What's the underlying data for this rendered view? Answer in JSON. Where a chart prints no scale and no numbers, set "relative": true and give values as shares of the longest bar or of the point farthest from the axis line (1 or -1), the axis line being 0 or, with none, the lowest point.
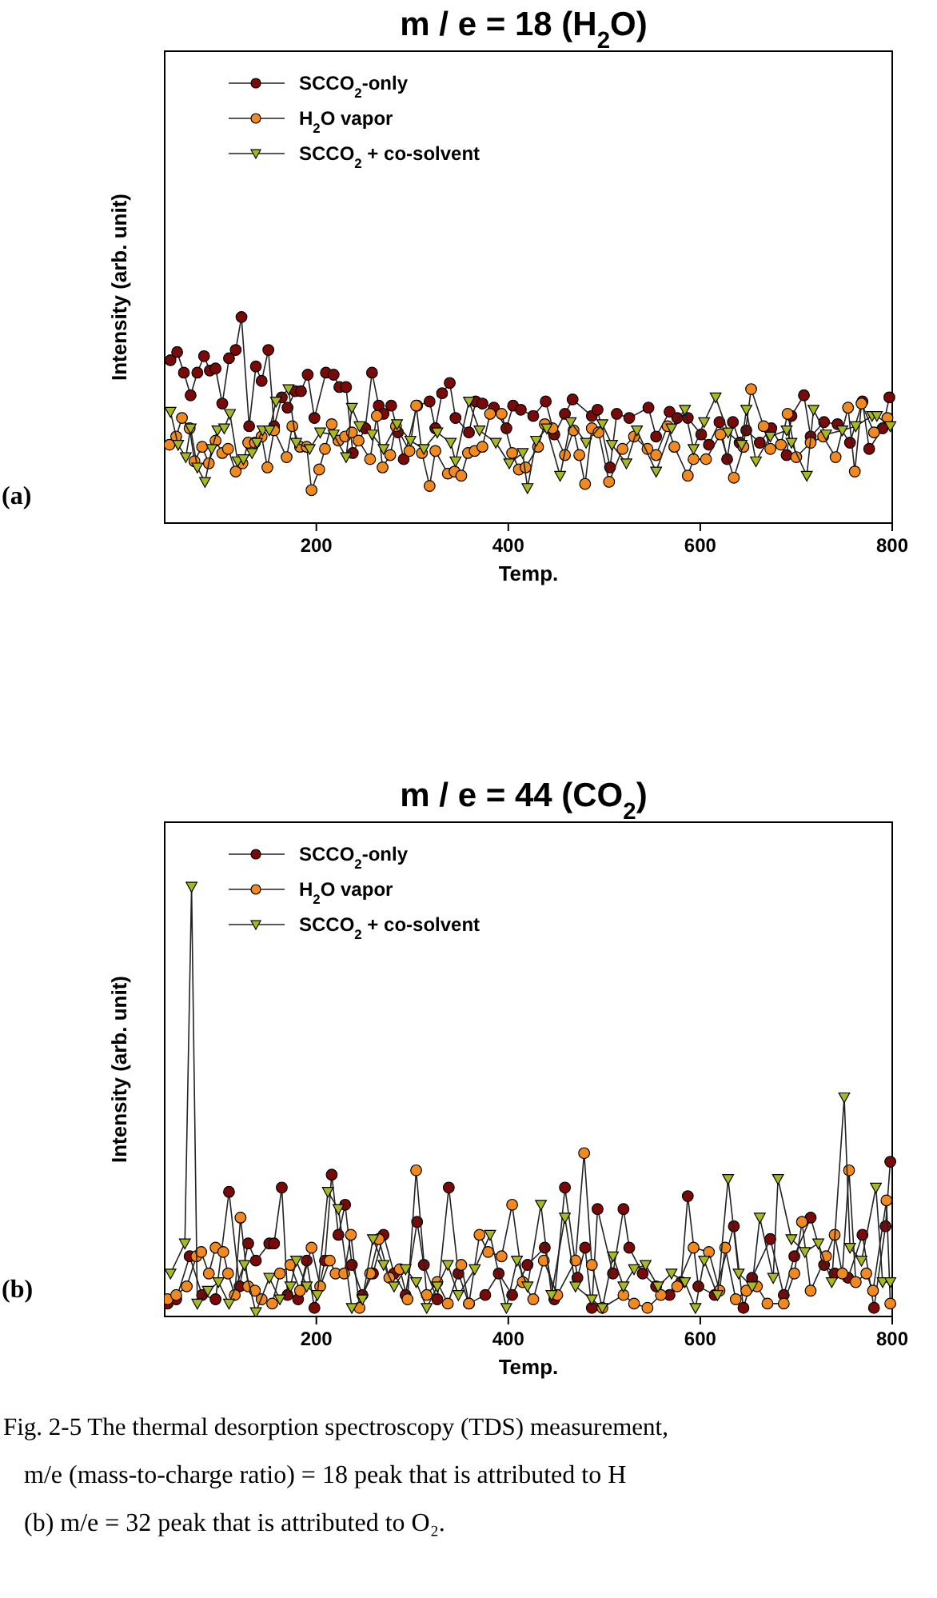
{
  "chart_data": [
    {
      "type": "line",
      "title": "m / e  =  18  (H$_{2}$O)",
      "xlabel": "Temp.",
      "ylabel": "Intensity (arb. unit)",
      "relative": true,
      "xlim": [
        42,
        800
      ],
      "xticks": [
        200,
        400,
        600,
        800
      ],
      "legend": "top left",
      "annotations": [
        "(a)"
      ],
      "series": [
        {
          "name": "SCCO$_{2}$-only",
          "color": "#7a0a0a",
          "marker": "circle",
          "x": [
            48,
            55,
            62,
            69,
            76,
            83,
            89,
            95,
            102,
            109,
            116,
            122,
            130,
            137,
            143,
            150,
            156,
            164,
            170,
            178,
            184,
            191,
            198,
            210,
            218,
            224,
            231,
            238,
            251,
            258,
            265,
            270,
            278,
            285,
            291,
            305,
            318,
            324,
            331,
            339,
            345,
            359,
            366,
            373,
            385,
            398,
            405,
            413,
            426,
            439,
            448,
            459,
            467,
            487,
            493,
            506,
            513,
            526,
            546,
            554,
            568,
            576,
            587,
            601,
            609,
            620,
            628,
            634,
            641,
            648,
            662,
            674,
            690,
            695,
            708,
            715,
            729,
            743,
            756,
            769,
            776,
            790,
            797
          ],
          "values": [
            0.79,
            0.83,
            0.73,
            0.62,
            0.73,
            0.81,
            0.74,
            0.75,
            0.58,
            0.8,
            0.84,
            1.0,
            0.47,
            0.76,
            0.69,
            0.84,
            0.47,
            0.61,
            0.56,
            0.64,
            0.64,
            0.72,
            0.51,
            0.73,
            0.72,
            0.66,
            0.66,
            0.34,
            0.46,
            0.73,
            0.57,
            0.53,
            0.57,
            0.44,
            0.31,
            0.57,
            0.59,
            0.46,
            0.63,
            0.68,
            0.51,
            0.44,
            0.59,
            0.58,
            0.56,
            0.46,
            0.57,
            0.55,
            0.52,
            0.59,
            0.43,
            0.53,
            0.6,
            0.52,
            0.55,
            0.27,
            0.53,
            0.51,
            0.56,
            0.42,
            0.54,
            0.51,
            0.51,
            0.43,
            0.38,
            0.49,
            0.31,
            0.49,
            0.39,
            0.45,
            0.39,
            0.46,
            0.33,
            0.52,
            0.62,
            0.42,
            0.49,
            0.48,
            0.39,
            0.59,
            0.36,
            0.46,
            0.61
          ]
        },
        {
          "name": "H$_{2}$O vapor",
          "color": "#f08a20",
          "marker": "circle",
          "x": [
            47,
            54,
            60,
            68,
            73,
            81,
            88,
            95,
            102,
            108,
            116,
            123,
            129,
            136,
            143,
            149,
            156,
            169,
            175,
            183,
            190,
            195,
            203,
            209,
            216,
            223,
            230,
            237,
            244,
            256,
            263,
            269,
            277,
            283,
            297,
            304,
            310,
            318,
            324,
            337,
            344,
            351,
            358,
            365,
            373,
            381,
            393,
            404,
            411,
            418,
            431,
            438,
            446,
            459,
            468,
            474,
            480,
            487,
            494,
            505,
            519,
            531,
            545,
            554,
            566,
            573,
            587,
            593,
            606,
            621,
            635,
            645,
            653,
            666,
            673,
            684,
            691,
            700,
            715,
            728,
            741,
            754,
            761,
            768,
            781,
            795
          ],
          "values": [
            0.38,
            0.42,
            0.51,
            0.46,
            0.3,
            0.37,
            0.29,
            0.4,
            0.34,
            0.36,
            0.25,
            0.29,
            0.39,
            0.39,
            0.42,
            0.27,
            0.45,
            0.32,
            0.47,
            0.37,
            0.37,
            0.16,
            0.26,
            0.36,
            0.48,
            0.4,
            0.42,
            0.44,
            0.4,
            0.31,
            0.52,
            0.27,
            0.33,
            0.47,
            0.35,
            0.57,
            0.34,
            0.18,
            0.35,
            0.24,
            0.25,
            0.23,
            0.34,
            0.35,
            0.37,
            0.53,
            0.53,
            0.34,
            0.26,
            0.27,
            0.37,
            0.48,
            0.46,
            0.33,
            0.45,
            0.33,
            0.19,
            0.46,
            0.44,
            0.2,
            0.36,
            0.42,
            0.36,
            0.33,
            0.47,
            0.37,
            0.23,
            0.31,
            0.31,
            0.43,
            0.22,
            0.37,
            0.65,
            0.47,
            0.36,
            0.38,
            0.53,
            0.32,
            0.39,
            0.42,
            0.32,
            0.56,
            0.25,
            0.58,
            0.44,
            0.51
          ]
        },
        {
          "name": "SCCO$_{2}$ + co-solvent",
          "color": "#a8b820",
          "marker": "triangle",
          "x": [
            48,
            56,
            64,
            69,
            76,
            84,
            91,
            97,
            104,
            110,
            118,
            124,
            133,
            138,
            144,
            151,
            158,
            171,
            179,
            193,
            204,
            218,
            231,
            237,
            245,
            258,
            270,
            284,
            298,
            312,
            326,
            340,
            345,
            359,
            370,
            387,
            401,
            415,
            420,
            429,
            440,
            454,
            465,
            481,
            498,
            508,
            523,
            534,
            554,
            570,
            584,
            593,
            604,
            616,
            629,
            643,
            648,
            658,
            673,
            690,
            695,
            711,
            718,
            731,
            748,
            762,
            779,
            784,
            798
          ],
          "values": [
            0.54,
            0.38,
            0.32,
            0.46,
            0.27,
            0.2,
            0.36,
            0.45,
            0.46,
            0.53,
            0.3,
            0.31,
            0.34,
            0.39,
            0.45,
            0.45,
            0.59,
            0.65,
            0.39,
            0.36,
            0.44,
            0.43,
            0.32,
            0.56,
            0.47,
            0.43,
            0.36,
            0.48,
            0.4,
            0.36,
            0.44,
            0.39,
            0.3,
            0.59,
            0.45,
            0.39,
            0.29,
            0.34,
            0.17,
            0.4,
            0.46,
            0.23,
            0.49,
            0.39,
            0.48,
            0.38,
            0.29,
            0.45,
            0.25,
            0.46,
            0.55,
            0.36,
            0.49,
            0.61,
            0.44,
            0.38,
            0.55,
            0.3,
            0.42,
            0.45,
            0.39,
            0.23,
            0.55,
            0.43,
            0.45,
            0.47,
            0.52,
            0.52,
            0.47
          ]
        }
      ]
    },
    {
      "type": "line",
      "title": "m / e  =  44  (CO$_{2}$)",
      "xlabel": "Temp.",
      "ylabel": "Intensity (arb. unit)",
      "relative": true,
      "xlim": [
        42,
        800
      ],
      "xticks": [
        200,
        400,
        600,
        800
      ],
      "legend": "top left",
      "annotations": [
        "(b)",
        "Fig. 2-5    The thermal desorption spectroscopy (TDS) measurement,",
        "m/e (mass-to-charge ratio) = 18 peak that is attributed to H",
        "(b) m/e = 32 peak that is attributed to O₂."
      ],
      "series": [
        {
          "name": "SCCO$_{2}$-only",
          "color": "#7a0a0a",
          "marker": "circle",
          "x": [
            45,
            54,
            68,
            81,
            95,
            109,
            120,
            129,
            137,
            151,
            156,
            164,
            170,
            181,
            190,
            198,
            209,
            216,
            223,
            230,
            237,
            248,
            259,
            270,
            281,
            293,
            305,
            312,
            326,
            338,
            348,
            359,
            376,
            390,
            404,
            420,
            438,
            448,
            459,
            472,
            480,
            487,
            493,
            509,
            520,
            526,
            540,
            554,
            568,
            580,
            587,
            598,
            615,
            635,
            645,
            654,
            673,
            687,
            698,
            715,
            729,
            740,
            754,
            769,
            781,
            793,
            798
          ],
          "values": [
            0.03,
            0.04,
            0.14,
            0.05,
            0.04,
            0.29,
            0.07,
            0.17,
            0.13,
            0.17,
            0.17,
            0.3,
            0.05,
            0.04,
            0.13,
            0.02,
            0.13,
            0.33,
            0.19,
            0.26,
            0.12,
            0.05,
            0.1,
            0.19,
            0.1,
            0.05,
            0.22,
            0.12,
            0.04,
            0.3,
            0.1,
            0.03,
            0.05,
            0.1,
            0.05,
            0.12,
            0.16,
            0.04,
            0.3,
            0.09,
            0.16,
            0.02,
            0.25,
            0.1,
            0.25,
            0.16,
            0.1,
            0.07,
            0.05,
            0.08,
            0.28,
            0.07,
            0.05,
            0.21,
            0.02,
            0.09,
            0.18,
            0.05,
            0.14,
            0.23,
            0.12,
            0.1,
            0.09,
            0.19,
            0.02,
            0.21,
            0.36
          ]
        },
        {
          "name": "H$_{2}$O vapor",
          "color": "#f08a20",
          "marker": "circle",
          "x": [
            45,
            54,
            65,
            75,
            80,
            88,
            95,
            103,
            108,
            115,
            121,
            129,
            136,
            143,
            154,
            162,
            173,
            183,
            195,
            204,
            214,
            220,
            229,
            236,
            245,
            256,
            265,
            276,
            287,
            295,
            304,
            315,
            326,
            337,
            351,
            359,
            370,
            379,
            393,
            404,
            415,
            426,
            437,
            451,
            470,
            479,
            487,
            498,
            520,
            531,
            545,
            559,
            576,
            593,
            609,
            620,
            626,
            637,
            648,
            659,
            670,
            687,
            698,
            706,
            715,
            731,
            740,
            748,
            755,
            762,
            773,
            780,
            794,
            798
          ],
          "values": [
            0.04,
            0.05,
            0.07,
            0.14,
            0.15,
            0.1,
            0.16,
            0.15,
            0.1,
            0.05,
            0.23,
            0.07,
            0.06,
            0.04,
            0.03,
            0.1,
            0.12,
            0.06,
            0.16,
            0.07,
            0.13,
            0.1,
            0.1,
            0.19,
            0.02,
            0.1,
            0.18,
            0.09,
            0.11,
            0.04,
            0.34,
            0.05,
            0.08,
            0.03,
            0.12,
            0.03,
            0.19,
            0.15,
            0.14,
            0.26,
            0.08,
            0.04,
            0.13,
            0.05,
            0.13,
            0.38,
            0.12,
            0.02,
            0.05,
            0.03,
            0.02,
            0.05,
            0.07,
            0.16,
            0.15,
            0.06,
            0.16,
            0.04,
            0.06,
            0.07,
            0.03,
            0.03,
            0.1,
            0.22,
            0.06,
            0.14,
            0.19,
            0.1,
            0.34,
            0.08,
            0.1,
            0.06,
            0.27,
            0.03
          ]
        },
        {
          "name": "SCCO$_{2}$ + co-solvent",
          "color": "#a8b820",
          "marker": "triangle",
          "x": [
            48,
            63,
            70,
            76,
            87,
            98,
            109,
            125,
            137,
            151,
            162,
            173,
            179,
            190,
            201,
            212,
            223,
            237,
            248,
            259,
            270,
            281,
            293,
            304,
            315,
            326,
            337,
            348,
            365,
            381,
            398,
            409,
            420,
            434,
            445,
            459,
            470,
            487,
            498,
            509,
            520,
            531,
            543,
            556,
            570,
            584,
            595,
            604,
            618,
            629,
            640,
            654,
            662,
            676,
            681,
            695,
            709,
            723,
            737,
            750,
            756,
            768,
            783,
            790,
            798
          ],
          "values": [
            0.1,
            0.17,
            1.0,
            0.03,
            0.06,
            0.08,
            0.03,
            0.12,
            0.01,
            0.09,
            0.04,
            0.07,
            0.13,
            0.07,
            0.05,
            0.29,
            0.25,
            0.02,
            0.04,
            0.18,
            0.12,
            0.07,
            0.11,
            0.08,
            0.02,
            0.07,
            0.12,
            0.05,
            0.11,
            0.19,
            0.02,
            0.13,
            0.07,
            0.26,
            0.05,
            0.23,
            0.07,
            0.04,
            0.02,
            0.14,
            0.07,
            0.11,
            0.12,
            0.07,
            0.1,
            0.08,
            0.02,
            0.13,
            0.05,
            0.32,
            0.1,
            0.07,
            0.23,
            0.09,
            0.32,
            0.18,
            0.15,
            0.17,
            0.08,
            0.51,
            0.16,
            0.13,
            0.3,
            0.08,
            0.08
          ]
        }
      ]
    }
  ]
}
